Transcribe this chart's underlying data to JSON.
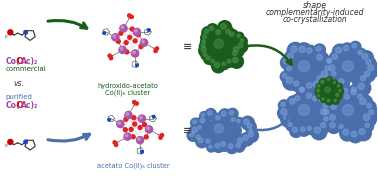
{
  "bg_color": "#ffffff",
  "title_line1": "shape",
  "title_line2": "complementarity-induced",
  "title_line3": "co-crystallization",
  "title_color": "#333333",
  "label_hydroxido_1": "hydroxido-acetato",
  "label_hydroxido_2": "Co(II)₆ cluster",
  "label_acetato": "acetato Co(II)₆ cluster",
  "label_co": "Co(",
  "label_o": "O",
  "label_ac": "Ac)₂",
  "label_commercial": "commercial",
  "label_purified": "purified",
  "label_vs": "vs.",
  "co_color": "#a040a0",
  "oac_color": "#cc0000",
  "green_color": "#1a5c1a",
  "blue_color": "#4a6faa",
  "arrow_green_color": "#1a5c1a",
  "arrow_blue_color": "#4a6faa",
  "eq_sign": "≡",
  "k_color": "#444444",
  "n_color": "#2244aa",
  "text_green": "#1a5c1a",
  "text_blue": "#4a6faa",
  "text_purple": "#a040a0",
  "text_red": "#cc0000",
  "text_dark": "#222222",
  "bond_color": "#555555",
  "o_atom_color": "#dd2222",
  "n_atom_color": "#2244bb",
  "co_atom_color": "#aa55aa"
}
